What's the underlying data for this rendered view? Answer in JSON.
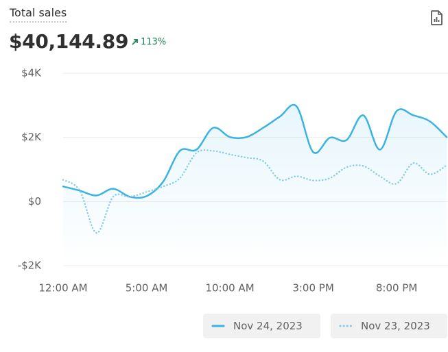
{
  "header": {
    "title": "Total sales",
    "value": "$40,144.89",
    "change": "113%"
  },
  "chart_data": {
    "type": "line",
    "categories": [
      "12:00 AM",
      null,
      null,
      null,
      null,
      "5:00 AM",
      null,
      null,
      null,
      null,
      "10:00 AM",
      null,
      null,
      null,
      null,
      "3:00 PM",
      null,
      null,
      null,
      null,
      "8:00 PM",
      null,
      null,
      null
    ],
    "series": [
      {
        "name": "Nov 24, 2023",
        "color": "#3bb3e2",
        "style": "solid",
        "values": [
          470,
          340,
          190,
          400,
          150,
          170,
          620,
          1580,
          1620,
          2300,
          2010,
          2010,
          2300,
          2650,
          2970,
          1540,
          1990,
          1920,
          2690,
          1620,
          2820,
          2690,
          2500,
          2010
        ]
      },
      {
        "name": "Nov 23, 2023",
        "color": "#7fcbe8",
        "style": "dotted",
        "values": [
          680,
          340,
          -980,
          150,
          150,
          300,
          470,
          730,
          1520,
          1580,
          1470,
          1370,
          1260,
          680,
          790,
          660,
          730,
          1070,
          1110,
          790,
          560,
          1200,
          850,
          1130
        ]
      }
    ],
    "ylim": [
      -2000,
      4000
    ],
    "yticks": [
      {
        "value": -2000,
        "label": "-$2K"
      },
      {
        "value": 0,
        "label": "$0"
      },
      {
        "value": 2000,
        "label": "$2K"
      },
      {
        "value": 4000,
        "label": "$4K"
      }
    ],
    "grid": true
  }
}
